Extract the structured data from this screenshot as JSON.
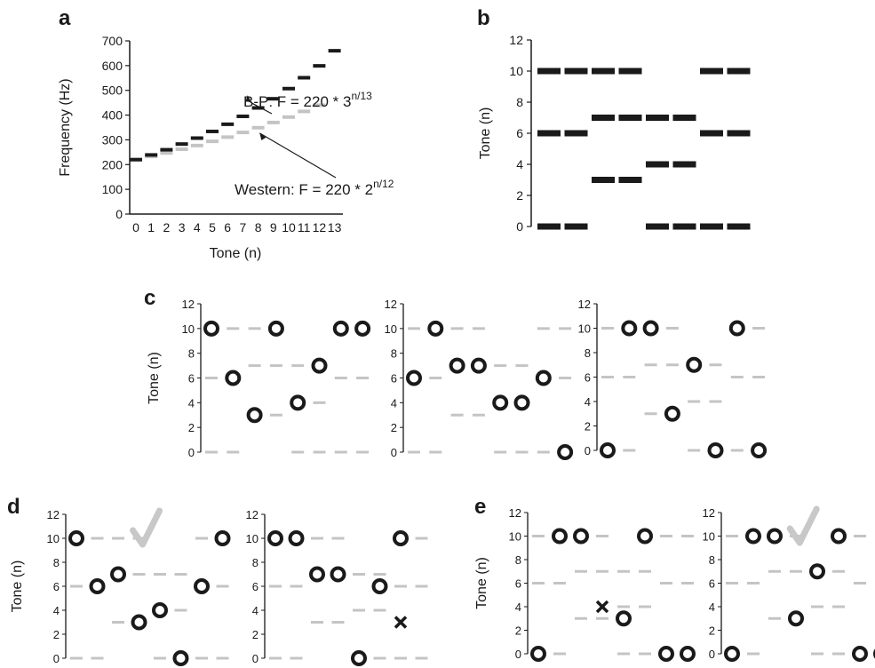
{
  "panel_letters": {
    "a": "a",
    "b": "b",
    "c": "c",
    "d": "d",
    "e": "e"
  },
  "chart_data": [
    {
      "panel": "a",
      "type": "scatter",
      "xlabel": "Tone (n)",
      "ylabel": "Frequency (Hz)",
      "xlim": [
        0,
        13
      ],
      "ylim": [
        0,
        700
      ],
      "x_ticks": [
        0,
        1,
        2,
        3,
        4,
        5,
        6,
        7,
        8,
        9,
        10,
        11,
        12,
        13
      ],
      "y_ticks": [
        0,
        100,
        200,
        300,
        400,
        500,
        600,
        700
      ],
      "grid": false,
      "series": [
        {
          "color": "#1a1a1a",
          "x": [
            0,
            1,
            2,
            3,
            4,
            5,
            6,
            7,
            8,
            9,
            10,
            11,
            12,
            13
          ],
          "y": [
            220,
            239,
            260,
            283,
            307,
            334,
            363,
            395,
            429,
            466,
            507,
            551,
            599,
            660
          ]
        },
        {
          "color": "#c4c4c4",
          "x": [
            0,
            1,
            2,
            3,
            4,
            5,
            6,
            7,
            8,
            9,
            10,
            11,
            12
          ],
          "y": [
            220,
            233,
            247,
            262,
            277,
            294,
            311,
            330,
            349,
            370,
            392,
            415,
            440
          ]
        }
      ],
      "annotations": [
        {
          "text": "B-P: F = 220 * 3",
          "sup": "n/13",
          "points_to": [
            7.6,
            430
          ]
        },
        {
          "text": "Western: F = 220 * 2",
          "sup": "n/12",
          "points_to": [
            8.1,
            345
          ]
        }
      ]
    },
    {
      "panel": "b",
      "type": "scatter",
      "ylabel": "Tone (n)",
      "ylim": [
        0,
        12
      ],
      "y_ticks": [
        0,
        2,
        4,
        6,
        8,
        10,
        12
      ],
      "grid": false,
      "columns": [
        [
          0,
          6,
          10
        ],
        [
          0,
          6,
          10
        ],
        [
          3,
          7,
          10
        ],
        [
          3,
          7,
          10
        ],
        [
          0,
          4,
          7
        ],
        [
          0,
          4,
          7
        ],
        [
          0,
          6,
          10
        ],
        [
          0,
          6,
          10
        ]
      ]
    },
    {
      "panel": "c",
      "type": "scatter",
      "ylabel": "Tone (n)",
      "ylim": [
        0,
        12
      ],
      "y_ticks": [
        0,
        2,
        4,
        6,
        8,
        10,
        12
      ],
      "subplots": [
        {
          "notes": [
            10,
            6,
            3,
            10,
            4,
            7,
            10,
            10
          ]
        },
        {
          "notes": [
            6,
            10,
            7,
            7,
            4,
            4,
            6,
            0
          ]
        },
        {
          "notes": [
            0,
            10,
            10,
            3,
            7,
            0,
            10,
            0
          ]
        }
      ]
    },
    {
      "panel": "d",
      "type": "scatter",
      "ylabel": "Tone (n)",
      "ylim": [
        0,
        12
      ],
      "y_ticks": [
        0,
        2,
        4,
        6,
        8,
        10,
        12
      ],
      "subplots": [
        {
          "notes": [
            10,
            6,
            7,
            3,
            4,
            0,
            6,
            10
          ],
          "checkmark": true
        },
        {
          "notes": [
            10,
            10,
            7,
            7,
            0,
            6,
            10
          ],
          "cross": {
            "position": 6,
            "value": 3
          }
        }
      ]
    },
    {
      "panel": "e",
      "type": "scatter",
      "ylabel": "Tone (n)",
      "ylim": [
        0,
        12
      ],
      "y_ticks": [
        0,
        2,
        4,
        6,
        8,
        10,
        12
      ],
      "subplots": [
        {
          "notes": [
            0,
            10,
            10,
            3,
            10,
            0,
            0
          ],
          "skip": [
            3
          ],
          "cross": {
            "position": 3,
            "value": 4
          }
        },
        {
          "notes": [
            0,
            10,
            10,
            3,
            7,
            10,
            0,
            0
          ],
          "checkmark": true
        }
      ]
    }
  ],
  "colors": {
    "ink": "#1a1a1a",
    "gray": "#c4c4c4",
    "check": "#c8c8c8"
  }
}
